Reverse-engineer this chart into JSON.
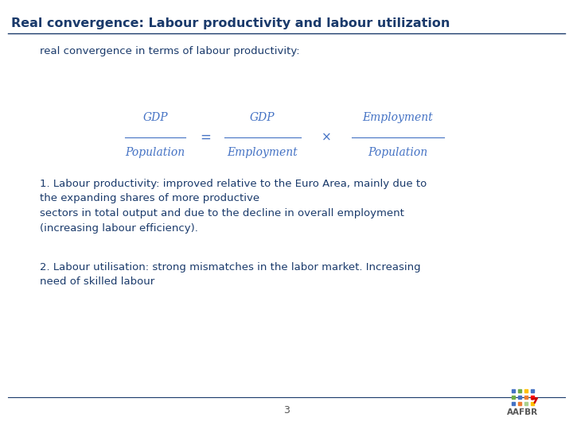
{
  "title": "Real convergence: Labour productivity and labour utilization",
  "subtitle": "real convergence in terms of labour productivity:",
  "title_color": "#1a3a6b",
  "subtitle_color": "#1a3a6b",
  "text1": "1. Labour productivity: improved relative to the Euro Area, mainly due to\nthe expanding shares of more productive\nsectors in total output and due to the decline in overall employment\n(increasing labour efficiency).",
  "text2": "2. Labour utilisation: strong mismatches in the labor market. Increasing\nneed of skilled labour",
  "text_color": "#1a3a6b",
  "page_number": "3",
  "background_color": "#ffffff",
  "line_color": "#1a3a6b",
  "formula_color": "#4472c4",
  "title_fontsize": 11.5,
  "subtitle_fontsize": 9.5,
  "text_fontsize": 9.5,
  "formula_fontsize": 10,
  "page_fontsize": 9
}
